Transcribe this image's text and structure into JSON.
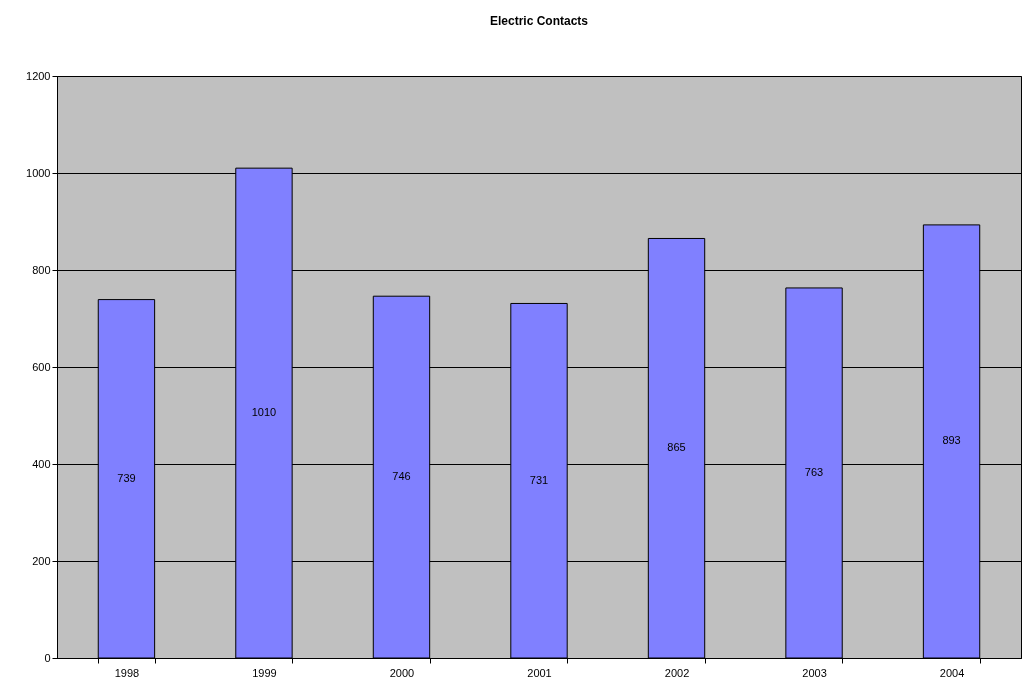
{
  "chart_data": {
    "type": "bar",
    "title": "Electric Contacts",
    "categories": [
      "1998",
      "1999",
      "2000",
      "2001",
      "2002",
      "2003",
      "2004"
    ],
    "values": [
      739,
      1010,
      746,
      731,
      865,
      763,
      893
    ],
    "color": "#8080ff",
    "ylim": [
      0,
      1200
    ],
    "yticks": [
      0,
      200,
      400,
      600,
      800,
      1000,
      1200
    ],
    "grid": "y",
    "data_labels": true
  }
}
